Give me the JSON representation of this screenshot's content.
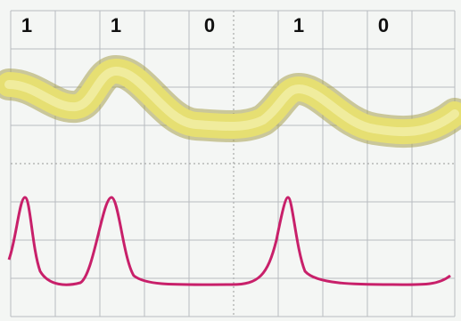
{
  "bits": [
    "1",
    "1",
    "0",
    "1",
    "0"
  ]
}
